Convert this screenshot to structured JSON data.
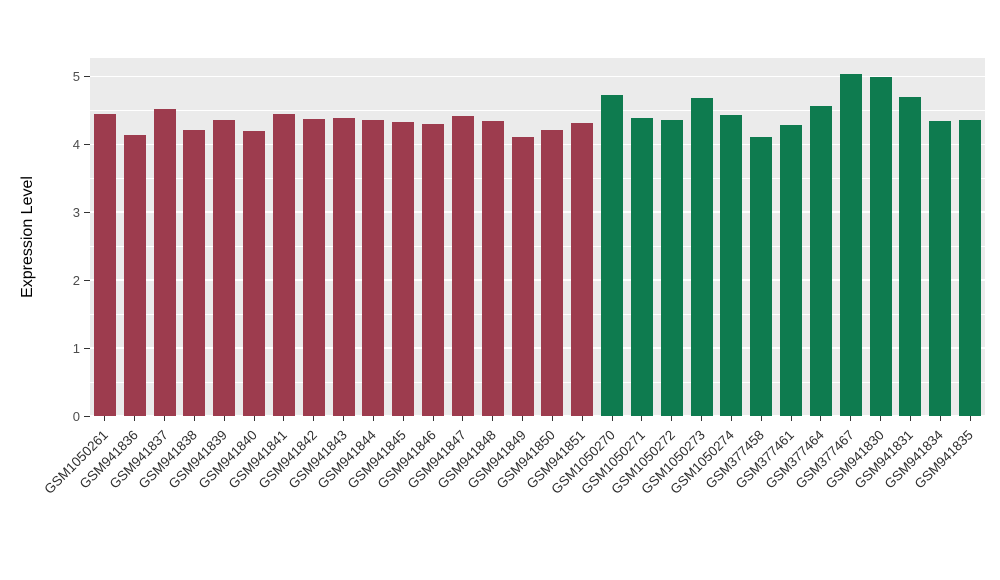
{
  "figure": {
    "background": "#FFFFFF"
  },
  "chart_data": {
    "type": "bar",
    "title": "",
    "xlabel": "",
    "ylabel": "Expression Level",
    "ylim": [
      0,
      5.27
    ],
    "yticks": [
      0,
      1,
      2,
      3,
      4,
      5
    ],
    "grid": "on",
    "legend": "none",
    "panel_background": "#EBEBEB",
    "gridline_color": "#FFFFFF",
    "axis_text_color": "#4D4D4D",
    "axis_title_color": "#000000",
    "group_colors": {
      "group1": "#9D3C4E",
      "group2": "#0E7B4F"
    },
    "categories": [
      "GSM1050261",
      "GSM941836",
      "GSM941837",
      "GSM941838",
      "GSM941839",
      "GSM941840",
      "GSM941841",
      "GSM941842",
      "GSM941843",
      "GSM941844",
      "GSM941845",
      "GSM941846",
      "GSM941847",
      "GSM941848",
      "GSM941849",
      "GSM941850",
      "GSM941851",
      "GSM1050270",
      "GSM1050271",
      "GSM1050272",
      "GSM1050273",
      "GSM1050274",
      "GSM377458",
      "GSM377461",
      "GSM377464",
      "GSM377467",
      "GSM941830",
      "GSM941831",
      "GSM941834",
      "GSM941835"
    ],
    "values": [
      4.45,
      4.13,
      4.52,
      4.21,
      4.36,
      4.19,
      4.44,
      4.37,
      4.38,
      4.36,
      4.33,
      4.3,
      4.42,
      4.34,
      4.1,
      4.21,
      4.32,
      4.72,
      4.38,
      4.36,
      4.68,
      4.43,
      4.11,
      4.29,
      4.57,
      5.03,
      4.99,
      4.7,
      4.34,
      4.36
    ],
    "bar_groups": [
      "group1",
      "group1",
      "group1",
      "group1",
      "group1",
      "group1",
      "group1",
      "group1",
      "group1",
      "group1",
      "group1",
      "group1",
      "group1",
      "group1",
      "group1",
      "group1",
      "group1",
      "group2",
      "group2",
      "group2",
      "group2",
      "group2",
      "group2",
      "group2",
      "group2",
      "group2",
      "group2",
      "group2",
      "group2",
      "group2"
    ]
  }
}
